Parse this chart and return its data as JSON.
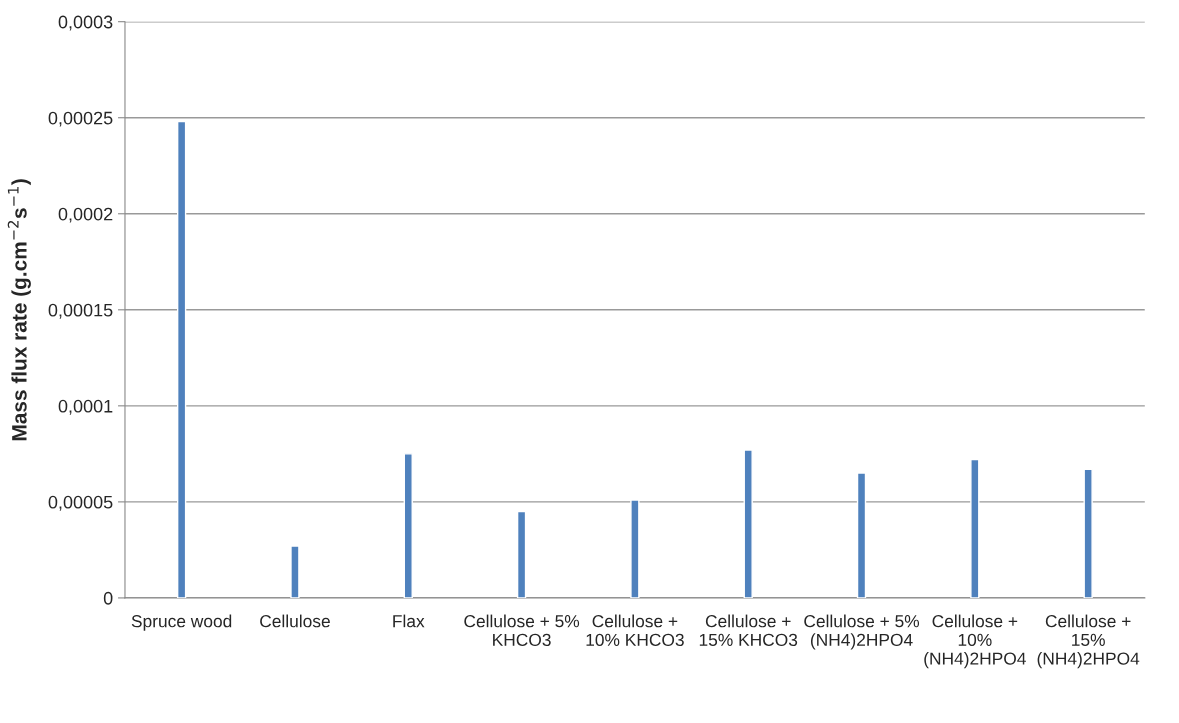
{
  "chart_data": {
    "type": "bar",
    "ylabel": "Mass flux rate (g.cm$^{−2}$s$^{−1}$)",
    "categories": [
      "Spruce wood",
      "Cellulose",
      "Flax",
      "Cellulose + 5%\nKHCO3",
      "Cellulose +\n10% KHCO3",
      "Cellulose +\n15% KHCO3",
      "Cellulose + 5%\n(NH4)2HPO4",
      "Cellulose +\n10%\n(NH4)2HPO4",
      "Cellulose +\n15%\n(NH4)2HPO4"
    ],
    "values": [
      0.000248,
      2.7e-05,
      7.5e-05,
      4.5e-05,
      5.1e-05,
      7.7e-05,
      6.5e-05,
      7.2e-05,
      6.7e-05
    ],
    "color": "#4f81bd",
    "ylim": [
      0,
      0.0003
    ],
    "yticks": [
      0,
      {
        "value": 5e-05,
        "label": "0,00005"
      },
      {
        "value": 0.0001,
        "label": "0,0001"
      },
      {
        "value": 0.00015,
        "label": "0,00015"
      },
      {
        "value": 0.0002,
        "label": "0,0002"
      },
      {
        "value": 0.00025,
        "label": "0,00025"
      },
      {
        "value": 0.0003,
        "label": "0,0003"
      }
    ],
    "grid": "y"
  }
}
